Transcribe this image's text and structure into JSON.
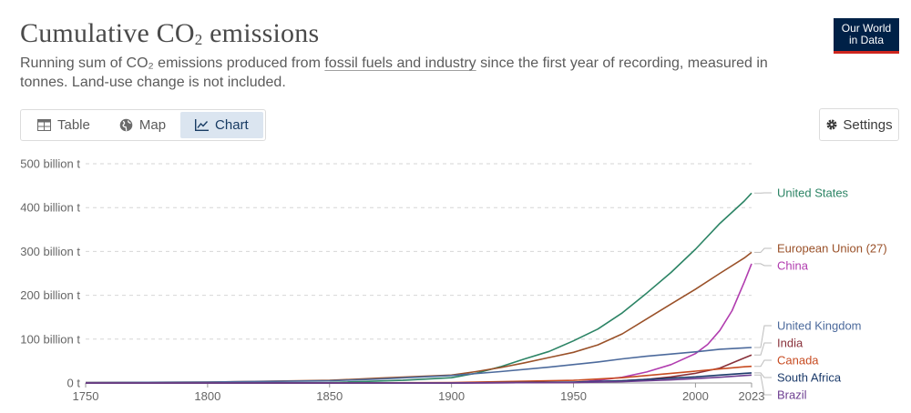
{
  "header": {
    "title_main": "Cumulative CO",
    "title_sub": "2",
    "title_end": " emissions",
    "subtitle_part1": "Running sum of CO₂ emissions produced from ",
    "subtitle_link": "fossil fuels and industry",
    "subtitle_part2": " since the first year of recording, measured in tonnes. Land-use change is not included.",
    "logo_line1": "Our World",
    "logo_line2": "in Data"
  },
  "tabs": [
    {
      "label": "Table",
      "icon": "table-icon"
    },
    {
      "label": "Map",
      "icon": "globe-icon"
    },
    {
      "label": "Chart",
      "icon": "line-chart-icon",
      "active": true
    }
  ],
  "settings_label": "Settings",
  "chart_data": {
    "type": "line",
    "title": "Cumulative CO₂ emissions",
    "xlabel": "",
    "ylabel": "",
    "xlim": [
      1750,
      2023
    ],
    "ylim": [
      0,
      500
    ],
    "x_ticks": [
      1750,
      1800,
      1850,
      1900,
      1950,
      2000,
      2023
    ],
    "y_ticks": [
      {
        "value": 0,
        "label": "0 t"
      },
      {
        "value": 100,
        "label": "100 billion t"
      },
      {
        "value": 200,
        "label": "200 billion t"
      },
      {
        "value": 300,
        "label": "300 billion t"
      },
      {
        "value": 400,
        "label": "400 billion t"
      },
      {
        "value": 500,
        "label": "500 billion t"
      }
    ],
    "grid": "horizontal-dashed",
    "legend": "right, end-of-line labels",
    "series": [
      {
        "name": "United States",
        "color": "#2c8465",
        "points": [
          [
            1750,
            0
          ],
          [
            1800,
            0
          ],
          [
            1850,
            1
          ],
          [
            1880,
            6
          ],
          [
            1900,
            12
          ],
          [
            1910,
            22
          ],
          [
            1920,
            37
          ],
          [
            1930,
            55
          ],
          [
            1940,
            72
          ],
          [
            1950,
            96
          ],
          [
            1960,
            123
          ],
          [
            1970,
            160
          ],
          [
            1980,
            205
          ],
          [
            1990,
            252
          ],
          [
            2000,
            305
          ],
          [
            2010,
            364
          ],
          [
            2020,
            415
          ],
          [
            2023,
            433
          ]
        ]
      },
      {
        "name": "European Union (27)",
        "color": "#9a5129",
        "points": [
          [
            1750,
            1
          ],
          [
            1800,
            2
          ],
          [
            1850,
            6
          ],
          [
            1870,
            11
          ],
          [
            1900,
            18
          ],
          [
            1910,
            26
          ],
          [
            1920,
            35
          ],
          [
            1930,
            46
          ],
          [
            1940,
            58
          ],
          [
            1950,
            70
          ],
          [
            1960,
            87
          ],
          [
            1970,
            112
          ],
          [
            1980,
            146
          ],
          [
            1990,
            180
          ],
          [
            2000,
            214
          ],
          [
            2010,
            250
          ],
          [
            2020,
            285
          ],
          [
            2023,
            298
          ]
        ]
      },
      {
        "name": "China",
        "color": "#b13daf",
        "points": [
          [
            1750,
            0
          ],
          [
            1850,
            0
          ],
          [
            1900,
            0
          ],
          [
            1950,
            1
          ],
          [
            1960,
            6
          ],
          [
            1970,
            13
          ],
          [
            1980,
            25
          ],
          [
            1990,
            42
          ],
          [
            2000,
            67
          ],
          [
            2005,
            88
          ],
          [
            2010,
            120
          ],
          [
            2015,
            165
          ],
          [
            2020,
            230
          ],
          [
            2023,
            272
          ]
        ]
      },
      {
        "name": "United Kingdom",
        "color": "#4c6a9c",
        "points": [
          [
            1750,
            1
          ],
          [
            1800,
            2
          ],
          [
            1850,
            5
          ],
          [
            1870,
            9
          ],
          [
            1900,
            17
          ],
          [
            1920,
            26
          ],
          [
            1940,
            36
          ],
          [
            1960,
            48
          ],
          [
            1970,
            55
          ],
          [
            1980,
            61
          ],
          [
            1990,
            66
          ],
          [
            2000,
            71
          ],
          [
            2010,
            77
          ],
          [
            2020,
            80
          ],
          [
            2023,
            81
          ]
        ]
      },
      {
        "name": "India",
        "color": "#883039",
        "points": [
          [
            1750,
            0
          ],
          [
            1850,
            0
          ],
          [
            1900,
            0
          ],
          [
            1950,
            1
          ],
          [
            1960,
            3
          ],
          [
            1970,
            5
          ],
          [
            1980,
            8
          ],
          [
            1990,
            14
          ],
          [
            2000,
            22
          ],
          [
            2010,
            34
          ],
          [
            2020,
            57
          ],
          [
            2023,
            64
          ]
        ]
      },
      {
        "name": "Canada",
        "color": "#c74b21",
        "points": [
          [
            1750,
            0
          ],
          [
            1850,
            0
          ],
          [
            1900,
            1
          ],
          [
            1920,
            3
          ],
          [
            1950,
            6
          ],
          [
            1970,
            12
          ],
          [
            1980,
            17
          ],
          [
            1990,
            22
          ],
          [
            2000,
            27
          ],
          [
            2010,
            32
          ],
          [
            2020,
            37
          ],
          [
            2023,
            38
          ]
        ]
      },
      {
        "name": "South Africa",
        "color": "#1b3a6a",
        "points": [
          [
            1750,
            0
          ],
          [
            1900,
            0
          ],
          [
            1920,
            1
          ],
          [
            1950,
            2
          ],
          [
            1970,
            5
          ],
          [
            1980,
            8
          ],
          [
            1990,
            11
          ],
          [
            2000,
            14
          ],
          [
            2010,
            18
          ],
          [
            2020,
            22
          ],
          [
            2023,
            23
          ]
        ]
      },
      {
        "name": "Brazil",
        "color": "#6d3e91",
        "points": [
          [
            1750,
            0
          ],
          [
            1900,
            0
          ],
          [
            1950,
            1
          ],
          [
            1970,
            3
          ],
          [
            1980,
            5
          ],
          [
            1990,
            7
          ],
          [
            2000,
            10
          ],
          [
            2010,
            13
          ],
          [
            2020,
            17
          ],
          [
            2023,
            18
          ]
        ]
      }
    ],
    "legend_label_y": [
      212,
      273,
      292,
      358,
      377,
      396,
      415,
      434
    ]
  }
}
